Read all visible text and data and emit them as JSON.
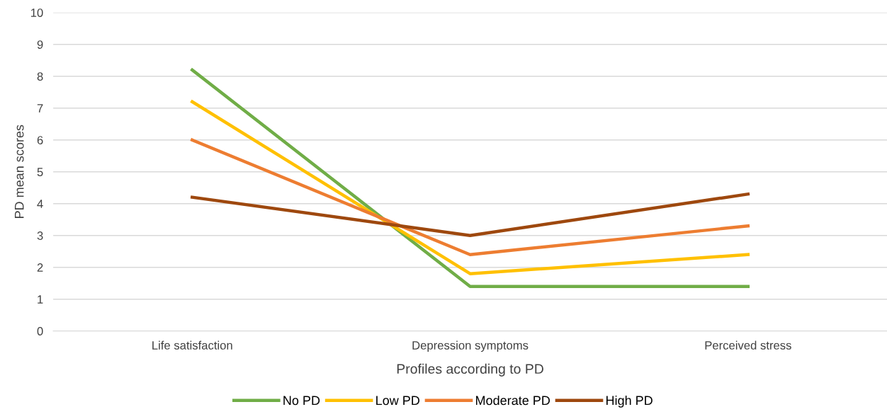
{
  "chart_data": {
    "type": "line",
    "xlabel": "Profiles according to PD",
    "ylabel": "PD mean scores",
    "categories": [
      "Life satisfaction",
      "Depression symptoms",
      "Perceived stress"
    ],
    "series": [
      {
        "name": "No PD",
        "color": "#70ad47",
        "values": [
          8.2,
          1.4,
          1.4
        ]
      },
      {
        "name": "Low PD",
        "color": "#ffc000",
        "values": [
          7.2,
          1.8,
          2.4
        ]
      },
      {
        "name": "Moderate PD",
        "color": "#ed7d31",
        "values": [
          6.0,
          2.4,
          3.3
        ]
      },
      {
        "name": "High PD",
        "color": "#9e480e",
        "values": [
          4.2,
          3.0,
          4.3
        ]
      }
    ],
    "ylim": [
      0,
      10
    ],
    "yticks": [
      0,
      1,
      2,
      3,
      4,
      5,
      6,
      7,
      8,
      9,
      10
    ],
    "grid": "y",
    "legend": "bottom",
    "marker": "none",
    "line_style": "solid"
  }
}
